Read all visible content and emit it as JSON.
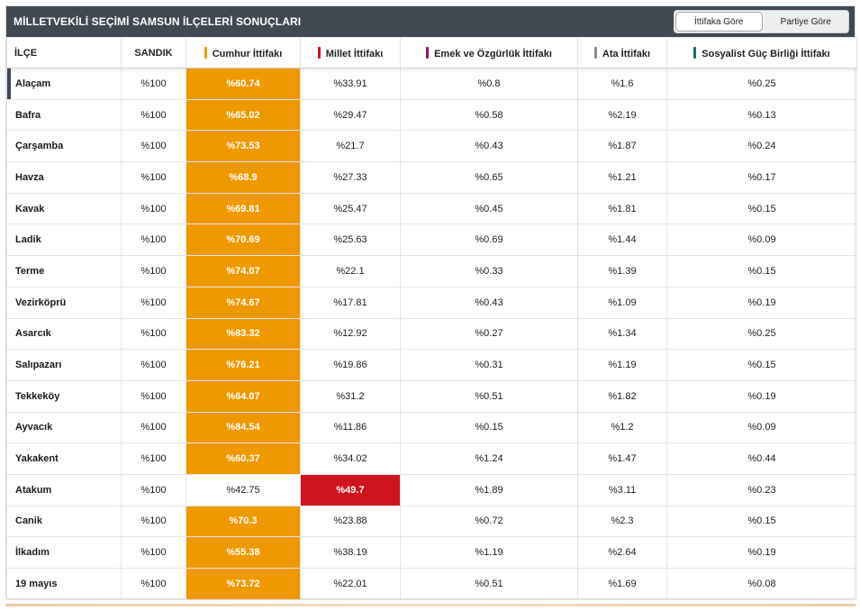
{
  "header": {
    "title": "MİLLETVEKİLİ SEÇİMİ SAMSUN İLÇELERİ SONUÇLARI",
    "toggle": {
      "option1": "İttifaka Göre",
      "option2": "Partiye Göre",
      "active": "İttifaka Göre"
    }
  },
  "columns": [
    {
      "label": "İLÇE"
    },
    {
      "label": "SANDIK"
    },
    {
      "label": "Cumhur İttifakı",
      "color": "#f29a00"
    },
    {
      "label": "Millet İttifakı",
      "color": "#d0141e"
    },
    {
      "label": "Emek ve Özgürlük İttifakı",
      "color": "#8a1a6a"
    },
    {
      "label": "Ata İttifakı",
      "color": "#8c8c8c"
    },
    {
      "label": "Sosyalist Güç Birliği İttifakı",
      "color": "#1d6b68"
    }
  ],
  "colors": {
    "cumhur_win": "#ef9900",
    "millet_win": "#d0141e",
    "header_bg": "#404952"
  },
  "rows": [
    {
      "ilce": "Alaçam",
      "sandik": "%100",
      "cumhur": "%60.74",
      "millet": "%33.91",
      "emek": "%0.8",
      "ata": "%1.6",
      "sosyalist": "%0.25",
      "winner": "cumhur"
    },
    {
      "ilce": "Bafra",
      "sandik": "%100",
      "cumhur": "%65.02",
      "millet": "%29.47",
      "emek": "%0.58",
      "ata": "%2.19",
      "sosyalist": "%0.13",
      "winner": "cumhur"
    },
    {
      "ilce": "Çarşamba",
      "sandik": "%100",
      "cumhur": "%73.53",
      "millet": "%21.7",
      "emek": "%0.43",
      "ata": "%1.87",
      "sosyalist": "%0.24",
      "winner": "cumhur"
    },
    {
      "ilce": "Havza",
      "sandik": "%100",
      "cumhur": "%68.9",
      "millet": "%27.33",
      "emek": "%0.65",
      "ata": "%1.21",
      "sosyalist": "%0.17",
      "winner": "cumhur"
    },
    {
      "ilce": "Kavak",
      "sandik": "%100",
      "cumhur": "%69.81",
      "millet": "%25.47",
      "emek": "%0.45",
      "ata": "%1.81",
      "sosyalist": "%0.15",
      "winner": "cumhur"
    },
    {
      "ilce": "Ladik",
      "sandik": "%100",
      "cumhur": "%70.69",
      "millet": "%25.63",
      "emek": "%0.69",
      "ata": "%1.44",
      "sosyalist": "%0.09",
      "winner": "cumhur"
    },
    {
      "ilce": "Terme",
      "sandik": "%100",
      "cumhur": "%74.07",
      "millet": "%22.1",
      "emek": "%0.33",
      "ata": "%1.39",
      "sosyalist": "%0.15",
      "winner": "cumhur"
    },
    {
      "ilce": "Vezirköprü",
      "sandik": "%100",
      "cumhur": "%74.67",
      "millet": "%17.81",
      "emek": "%0.43",
      "ata": "%1.09",
      "sosyalist": "%0.19",
      "winner": "cumhur"
    },
    {
      "ilce": "Asarcık",
      "sandik": "%100",
      "cumhur": "%83.32",
      "millet": "%12.92",
      "emek": "%0.27",
      "ata": "%1.34",
      "sosyalist": "%0.25",
      "winner": "cumhur"
    },
    {
      "ilce": "Salıpazarı",
      "sandik": "%100",
      "cumhur": "%76.21",
      "millet": "%19.86",
      "emek": "%0.31",
      "ata": "%1.19",
      "sosyalist": "%0.15",
      "winner": "cumhur"
    },
    {
      "ilce": "Tekkeköy",
      "sandik": "%100",
      "cumhur": "%64.07",
      "millet": "%31.2",
      "emek": "%0.51",
      "ata": "%1.82",
      "sosyalist": "%0.19",
      "winner": "cumhur"
    },
    {
      "ilce": "Ayvacık",
      "sandik": "%100",
      "cumhur": "%84.54",
      "millet": "%11.86",
      "emek": "%0.15",
      "ata": "%1.2",
      "sosyalist": "%0.09",
      "winner": "cumhur"
    },
    {
      "ilce": "Yakakent",
      "sandik": "%100",
      "cumhur": "%60.37",
      "millet": "%34.02",
      "emek": "%1.24",
      "ata": "%1.47",
      "sosyalist": "%0.44",
      "winner": "cumhur"
    },
    {
      "ilce": "Atakum",
      "sandik": "%100",
      "cumhur": "%42.75",
      "millet": "%49.7",
      "emek": "%1.89",
      "ata": "%3.11",
      "sosyalist": "%0.23",
      "winner": "millet"
    },
    {
      "ilce": "Canik",
      "sandik": "%100",
      "cumhur": "%70.3",
      "millet": "%23.88",
      "emek": "%0.72",
      "ata": "%2.3",
      "sosyalist": "%0.15",
      "winner": "cumhur"
    },
    {
      "ilce": "İlkadım",
      "sandik": "%100",
      "cumhur": "%55.38",
      "millet": "%38.19",
      "emek": "%1.19",
      "ata": "%2.64",
      "sosyalist": "%0.19",
      "winner": "cumhur"
    },
    {
      "ilce": "19 mayıs",
      "sandik": "%100",
      "cumhur": "%73.72",
      "millet": "%22.01",
      "emek": "%0.51",
      "ata": "%1.69",
      "sosyalist": "%0.08",
      "winner": "cumhur"
    }
  ]
}
